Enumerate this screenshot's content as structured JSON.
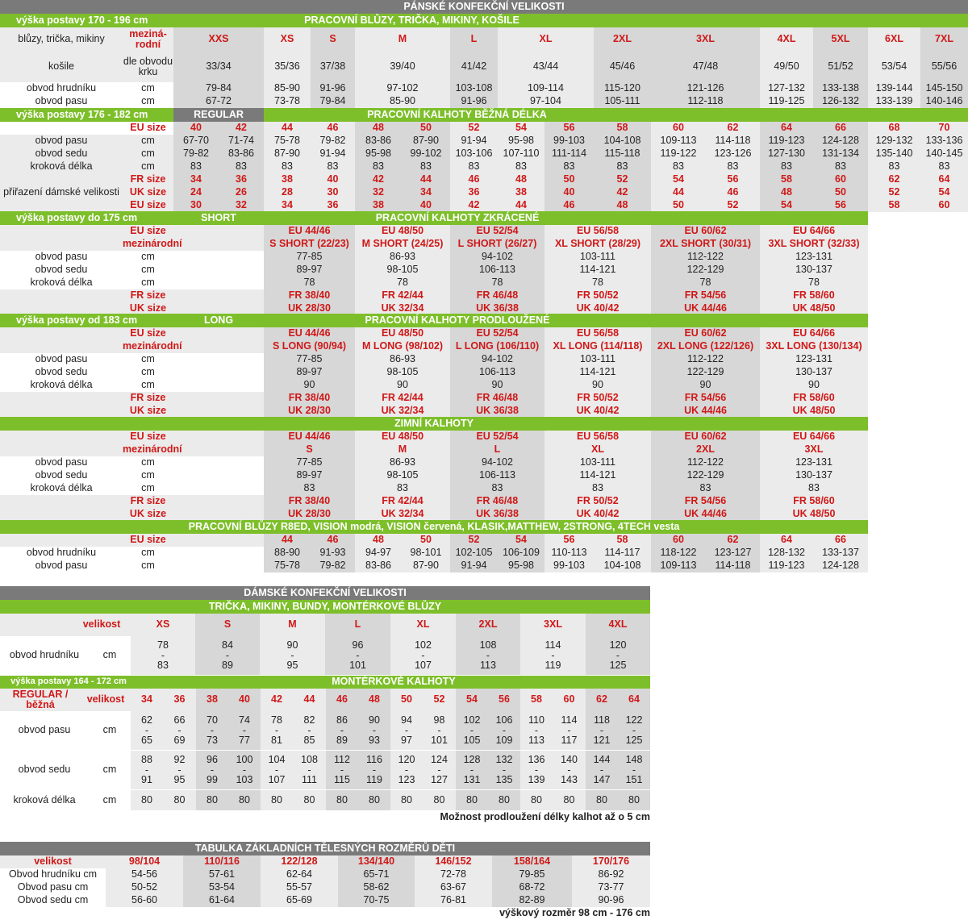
{
  "men": {
    "title": "PÁNSKÉ KONFEKČNÍ VELIKOSTI",
    "shirts": {
      "height": "výška postavy 170 - 196 cm",
      "title": "PRACOVNÍ BLŮZY, TRIČKA, MIKINY, KOŠILE",
      "label_row1": "blůzy, trička, mikiny",
      "intl": "meziná-rodní",
      "label_row2": "košile",
      "collar": "dle obvodu krku",
      "sizes": [
        "XXS",
        "XS",
        "S",
        "M",
        "L",
        "XL",
        "2XL",
        "3XL",
        "4XL",
        "5XL",
        "6XL",
        "7XL"
      ],
      "collars": [
        "33/34",
        "35/36",
        "37/38",
        "39/40",
        "41/42",
        "43/44",
        "45/46",
        "47/48",
        "49/50",
        "51/52",
        "53/54",
        "55/56"
      ],
      "rows": [
        {
          "label": "obvod hrudníku",
          "unit": "cm",
          "values": [
            "79-84",
            "85-90",
            "91-96",
            "97-102",
            "103-108",
            "109-114",
            "115-120",
            "121-126",
            "127-132",
            "133-138",
            "139-144",
            "145-150"
          ]
        },
        {
          "label": "obvod pasu",
          "unit": "cm",
          "values": [
            "67-72",
            "73-78",
            "79-84",
            "85-90",
            "91-96",
            "97-104",
            "105-111",
            "112-118",
            "119-125",
            "126-132",
            "133-139",
            "140-146"
          ]
        }
      ]
    },
    "regular": {
      "height": "výška postavy 176 - 182 cm",
      "fit": "REGULAR",
      "title": "PRACOVNÍ KALHOTY BĚŽNÁ DÉLKA",
      "eu_label": "EU size",
      "eu": [
        "40",
        "42",
        "44",
        "46",
        "48",
        "50",
        "52",
        "54",
        "56",
        "58",
        "60",
        "62",
        "64",
        "66",
        "68",
        "70"
      ],
      "rows": [
        {
          "label": "obvod pasu",
          "unit": "cm",
          "values": [
            "67-70",
            "71-74",
            "75-78",
            "79-82",
            "83-86",
            "87-90",
            "91-94",
            "95-98",
            "99-103",
            "104-108",
            "109-113",
            "114-118",
            "119-123",
            "124-128",
            "129-132",
            "133-136"
          ]
        },
        {
          "label": "obvod sedu",
          "unit": "cm",
          "values": [
            "79-82",
            "83-86",
            "87-90",
            "91-94",
            "95-98",
            "99-102",
            "103-106",
            "107-110",
            "111-114",
            "115-118",
            "119-122",
            "123-126",
            "127-130",
            "131-134",
            "135-140",
            "140-145"
          ]
        },
        {
          "label": "kroková délka",
          "unit": "cm",
          "values": [
            "83",
            "83",
            "83",
            "83",
            "83",
            "83",
            "83",
            "83",
            "83",
            "83",
            "83",
            "83",
            "83",
            "83",
            "83",
            "83"
          ]
        }
      ],
      "women_label": "přiřazení dámské velikosti",
      "fr_label": "FR size",
      "uk_label": "UK size",
      "eu2_label": "EU size",
      "fr": [
        "34",
        "36",
        "38",
        "40",
        "42",
        "44",
        "46",
        "48",
        "50",
        "52",
        "54",
        "56",
        "58",
        "60",
        "62",
        "64"
      ],
      "uk": [
        "24",
        "26",
        "28",
        "30",
        "32",
        "34",
        "36",
        "38",
        "40",
        "42",
        "44",
        "46",
        "48",
        "50",
        "52",
        "54"
      ],
      "eu2": [
        "30",
        "32",
        "34",
        "36",
        "38",
        "40",
        "42",
        "44",
        "46",
        "48",
        "50",
        "52",
        "54",
        "56",
        "58",
        "60"
      ]
    },
    "short": {
      "height": "výška postavy do 175 cm",
      "fit": "SHORT",
      "title": "PRACOVNÍ KALHOTY ZKRÁCENÉ",
      "eu_label": "EU size",
      "intl_label": "mezinárodní",
      "eu": [
        "EU 44/46",
        "EU 48/50",
        "EU 52/54",
        "EU 56/58",
        "EU 60/62",
        "EU 64/66"
      ],
      "intl": [
        "S SHORT (22/23)",
        "M SHORT (24/25)",
        "L SHORT (26/27)",
        "XL SHORT (28/29)",
        "2XL SHORT (30/31)",
        "3XL SHORT (32/33)"
      ],
      "rows": [
        {
          "label": "obvod pasu",
          "unit": "cm",
          "values": [
            "77-85",
            "86-93",
            "94-102",
            "103-111",
            "112-122",
            "123-131"
          ]
        },
        {
          "label": "obvod sedu",
          "unit": "cm",
          "values": [
            "89-97",
            "98-105",
            "106-113",
            "114-121",
            "122-129",
            "130-137"
          ]
        },
        {
          "label": "kroková délka",
          "unit": "cm",
          "values": [
            "78",
            "78",
            "78",
            "78",
            "78",
            "78"
          ]
        }
      ],
      "fr_label": "FR size",
      "uk_label": "UK size",
      "fr": [
        "FR 38/40",
        "FR 42/44",
        "FR 46/48",
        "FR 50/52",
        "FR 54/56",
        "FR 58/60"
      ],
      "uk": [
        "UK 28/30",
        "UK 32/34",
        "UK 36/38",
        "UK 40/42",
        "UK 44/46",
        "UK 48/50"
      ]
    },
    "long": {
      "height": "výška postavy od 183 cm",
      "fit": "LONG",
      "title": "PRACOVNÍ KALHOTY PRODLOUŽENÉ",
      "eu_label": "EU size",
      "intl_label": "mezinárodní",
      "eu": [
        "EU 44/46",
        "EU 48/50",
        "EU 52/54",
        "EU 56/58",
        "EU 60/62",
        "EU 64/66"
      ],
      "intl": [
        "S LONG (90/94)",
        "M LONG (98/102)",
        "L LONG (106/110)",
        "XL LONG (114/118)",
        "2XL LONG (122/126)",
        "3XL LONG (130/134)"
      ],
      "rows": [
        {
          "label": "obvod pasu",
          "unit": "cm",
          "values": [
            "77-85",
            "86-93",
            "94-102",
            "103-111",
            "112-122",
            "123-131"
          ]
        },
        {
          "label": "obvod sedu",
          "unit": "cm",
          "values": [
            "89-97",
            "98-105",
            "106-113",
            "114-121",
            "122-129",
            "130-137"
          ]
        },
        {
          "label": "kroková délka",
          "unit": "cm",
          "values": [
            "90",
            "90",
            "90",
            "90",
            "90",
            "90"
          ]
        }
      ],
      "fr_label": "FR size",
      "uk_label": "UK size",
      "fr": [
        "FR 38/40",
        "FR 42/44",
        "FR 46/48",
        "FR 50/52",
        "FR 54/56",
        "FR 58/60"
      ],
      "uk": [
        "UK 28/30",
        "UK 32/34",
        "UK 36/38",
        "UK 40/42",
        "UK 44/46",
        "UK 48/50"
      ]
    },
    "winter": {
      "title": "ZIMNÍ KALHOTY",
      "eu_label": "EU size",
      "intl_label": "mezinárodní",
      "eu": [
        "EU 44/46",
        "EU 48/50",
        "EU 52/54",
        "EU 56/58",
        "EU 60/62",
        "EU 64/66"
      ],
      "intl": [
        "S",
        "M",
        "L",
        "XL",
        "2XL",
        "3XL"
      ],
      "rows": [
        {
          "label": "obvod pasu",
          "unit": "cm",
          "values": [
            "77-85",
            "86-93",
            "94-102",
            "103-111",
            "112-122",
            "123-131"
          ]
        },
        {
          "label": "obvod sedu",
          "unit": "cm",
          "values": [
            "89-97",
            "98-105",
            "106-113",
            "114-121",
            "122-129",
            "130-137"
          ]
        },
        {
          "label": "kroková délka",
          "unit": "cm",
          "values": [
            "83",
            "83",
            "83",
            "83",
            "83",
            "83"
          ]
        }
      ],
      "fr_label": "FR size",
      "uk_label": "UK size",
      "fr": [
        "FR 38/40",
        "FR 42/44",
        "FR 46/48",
        "FR 50/52",
        "FR 54/56",
        "FR 58/60"
      ],
      "uk": [
        "UK 28/30",
        "UK 32/34",
        "UK 36/38",
        "UK 40/42",
        "UK 44/46",
        "UK 48/50"
      ]
    },
    "r8ed": {
      "title": "PRACOVNÍ BLŮZY R8ED, VISION modrá, VISION červená, KLASIK,MATTHEW, 2STRONG, 4TECH vesta",
      "eu_label": "EU size",
      "eu": [
        "44",
        "46",
        "48",
        "50",
        "52",
        "54",
        "56",
        "58",
        "60",
        "62",
        "64",
        "66"
      ],
      "rows": [
        {
          "label": "obvod hrudníku",
          "unit": "cm",
          "values": [
            "88-90",
            "91-93",
            "94-97",
            "98-101",
            "102-105",
            "106-109",
            "110-113",
            "114-117",
            "118-122",
            "123-127",
            "128-132",
            "133-137"
          ]
        },
        {
          "label": "obvod pasu",
          "unit": "cm",
          "values": [
            "75-78",
            "79-82",
            "83-86",
            "87-90",
            "91-94",
            "95-98",
            "99-103",
            "104-108",
            "109-113",
            "114-118",
            "119-123",
            "124-128"
          ]
        }
      ]
    }
  },
  "women": {
    "title": "DÁMSKÉ KONFEKČNÍ VELIKOSTI",
    "tops": {
      "title": "TRIČKA, MIKINY, BUNDY, MONTÉRKOVÉ BLŮZY",
      "size_label": "velikost",
      "sizes": [
        "XS",
        "S",
        "M",
        "L",
        "XL",
        "2XL",
        "3XL",
        "4XL"
      ],
      "row_label": "obvod hrudníku",
      "unit": "cm",
      "from": [
        "78",
        "84",
        "90",
        "96",
        "102",
        "108",
        "114",
        "120"
      ],
      "to": [
        "83",
        "89",
        "95",
        "101",
        "107",
        "113",
        "119",
        "125"
      ],
      "dash": "-"
    },
    "pants": {
      "height": "výška postavy 164 - 172 cm",
      "title": "MONTÉRKOVÉ KALHOTY",
      "fit": "REGULAR / běžná",
      "size_label": "velikost",
      "sizes": [
        "34",
        "36",
        "38",
        "40",
        "42",
        "44",
        "46",
        "48",
        "50",
        "52",
        "54",
        "56",
        "58",
        "60",
        "62",
        "64"
      ],
      "waist_label": "obvod pasu",
      "waist_from": [
        "62",
        "66",
        "70",
        "74",
        "78",
        "82",
        "86",
        "90",
        "94",
        "98",
        "102",
        "106",
        "110",
        "114",
        "118",
        "122"
      ],
      "waist_to": [
        "65",
        "69",
        "73",
        "77",
        "81",
        "85",
        "89",
        "93",
        "97",
        "101",
        "105",
        "109",
        "113",
        "117",
        "121",
        "125"
      ],
      "seat_label": "obvod sedu",
      "seat_from": [
        "88",
        "92",
        "96",
        "100",
        "104",
        "108",
        "112",
        "116",
        "120",
        "124",
        "128",
        "132",
        "136",
        "140",
        "144",
        "148"
      ],
      "seat_to": [
        "91",
        "95",
        "99",
        "103",
        "107",
        "111",
        "115",
        "119",
        "123",
        "127",
        "131",
        "135",
        "139",
        "143",
        "147",
        "151"
      ],
      "inseam_label": "kroková délka",
      "inseam": [
        "80",
        "80",
        "80",
        "80",
        "80",
        "80",
        "80",
        "80",
        "80",
        "80",
        "80",
        "80",
        "80",
        "80",
        "80",
        "80"
      ],
      "unit": "cm",
      "dash": "-",
      "note": "Možnost prodloužení délky kalhot až o 5 cm"
    }
  },
  "kids": {
    "title": "TABULKA ZÁKLADNÍCH TĚLESNÝCH ROZMĚRŮ DĚTI",
    "size_label": "velikost",
    "sizes": [
      "98/104",
      "110/116",
      "122/128",
      "134/140",
      "146/152",
      "158/164",
      "170/176"
    ],
    "rows": [
      {
        "label": "Obvod hrudníku cm",
        "values": [
          "54-56",
          "57-61",
          "62-64",
          "65-71",
          "72-78",
          "79-85",
          "86-92"
        ]
      },
      {
        "label": "Obvod pasu cm",
        "values": [
          "50-52",
          "53-54",
          "55-57",
          "58-62",
          "63-67",
          "68-72",
          "73-77"
        ]
      },
      {
        "label": "Obvod sedu cm",
        "values": [
          "56-60",
          "61-64",
          "65-69",
          "70-75",
          "76-81",
          "82-89",
          "90-96"
        ]
      }
    ],
    "note": "výškový rozměr 98 cm - 176 cm"
  },
  "colors": {
    "header_gray": "#7a7a7a",
    "green": "#7dbf2a",
    "light": "#ebebeb",
    "dark": "#d7d7d7",
    "red": "#d01818"
  }
}
